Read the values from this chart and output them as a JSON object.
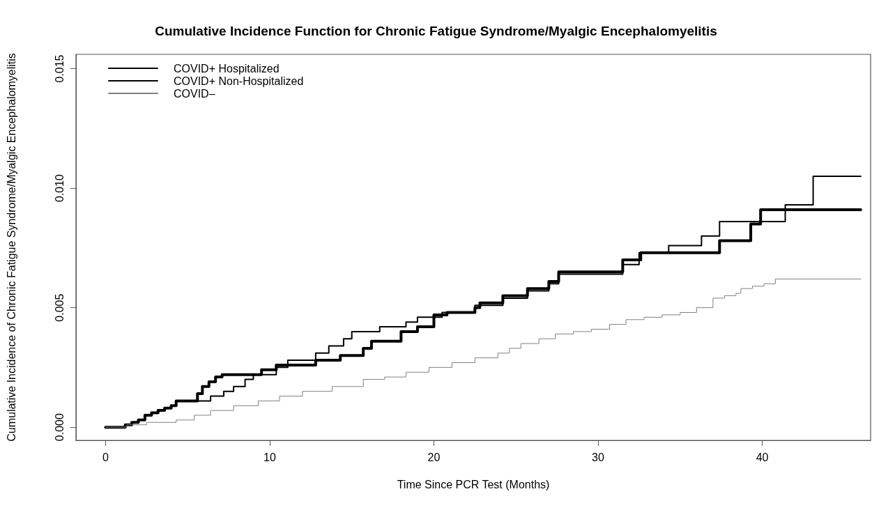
{
  "chart_data": {
    "type": "step",
    "title": "Cumulative Incidence Function for Chronic Fatigue Syndrome/Myalgic Encephalomyelitis",
    "xlabel": "Time Since PCR Test (Months)",
    "ylabel": "Cumulative Incidence of Chronic Fatigue Syndrome/Myalgic Encephalomyelitis",
    "xlim": [
      -1.8,
      46.6
    ],
    "ylim": [
      -0.00055,
      0.0156
    ],
    "xticks": [
      0,
      10,
      20,
      30,
      40
    ],
    "yticks": [
      {
        "value": 0,
        "label": "0.000"
      },
      {
        "value": 0.005,
        "label": "0.005"
      },
      {
        "value": 0.01,
        "label": "0.010"
      },
      {
        "value": 0.015,
        "label": "0.015"
      }
    ],
    "grid": false,
    "legend": "top left",
    "marker": "none",
    "line_style": "solid",
    "series": [
      {
        "name": "COVID+ Hospitalized",
        "color": "#000000",
        "x": [
          0,
          1.2,
          1.6,
          2,
          2.4,
          2.8,
          3.2,
          3.6,
          4,
          4.3,
          5.6,
          5.9,
          6.3,
          6.7,
          7.1,
          9.5,
          10.4,
          12.8,
          14.3,
          15.7,
          16.2,
          18,
          19,
          20,
          20.8,
          22.5,
          22.8,
          24.2,
          25.7,
          27,
          27.6,
          31.5,
          32.6,
          37.4,
          39.3,
          39.9,
          46
        ],
        "values": [
          0,
          0.0001,
          0.0002,
          0.0003,
          0.0005,
          0.0006,
          0.0007,
          0.0008,
          0.0009,
          0.0011,
          0.0014,
          0.0017,
          0.0019,
          0.0021,
          0.0022,
          0.0024,
          0.0026,
          0.0028,
          0.003,
          0.0033,
          0.0036,
          0.004,
          0.0042,
          0.0047,
          0.0048,
          0.005,
          0.0052,
          0.0055,
          0.0058,
          0.0061,
          0.0065,
          0.007,
          0.0073,
          0.0078,
          0.0085,
          0.0091,
          0.0091
        ]
      },
      {
        "name": "COVID+ Non-Hospitalized",
        "color": "#000000",
        "x": [
          0,
          1.2,
          1.6,
          2,
          2.4,
          2.8,
          3.2,
          3.6,
          4,
          4.3,
          6.4,
          7.2,
          7.8,
          8.5,
          9,
          10.4,
          11.1,
          12.8,
          13.6,
          14.5,
          15,
          16.7,
          18.3,
          19,
          20.5,
          22.5,
          24.2,
          25.7,
          27,
          27.6,
          31.5,
          32.5,
          34.3,
          36.3,
          37.4,
          41.4,
          43.1,
          46
        ],
        "values": [
          0,
          0.0001,
          0.0002,
          0.0003,
          0.0005,
          0.0006,
          0.0007,
          0.0008,
          0.0009,
          0.0011,
          0.0013,
          0.0015,
          0.0017,
          0.002,
          0.0022,
          0.0025,
          0.0028,
          0.0031,
          0.0034,
          0.0037,
          0.004,
          0.0042,
          0.0044,
          0.0046,
          0.0048,
          0.0051,
          0.0054,
          0.0057,
          0.006,
          0.0064,
          0.0068,
          0.0073,
          0.0076,
          0.008,
          0.0086,
          0.0093,
          0.0105,
          0.0105
        ]
      },
      {
        "name": "COVID–",
        "color": "#808080",
        "x": [
          0,
          1.3,
          2.5,
          4.3,
          5.4,
          6.4,
          7.8,
          9.3,
          10.6,
          12,
          13.8,
          15.7,
          17,
          18.3,
          19.7,
          21.1,
          22.5,
          23.9,
          24.6,
          25.3,
          26.4,
          27.4,
          28.5,
          29.6,
          30.7,
          31.7,
          32.8,
          33.9,
          35,
          36,
          37,
          37.7,
          38.4,
          38.7,
          39.4,
          40.1,
          40.8,
          46
        ],
        "values": [
          0,
          0.0001,
          0.0002,
          0.0003,
          0.0005,
          0.0007,
          0.0009,
          0.0011,
          0.0013,
          0.0015,
          0.0017,
          0.002,
          0.0021,
          0.0023,
          0.0025,
          0.0027,
          0.0029,
          0.0031,
          0.0033,
          0.0035,
          0.0037,
          0.0039,
          0.004,
          0.0041,
          0.0043,
          0.0045,
          0.0046,
          0.0047,
          0.0048,
          0.005,
          0.0054,
          0.0055,
          0.0056,
          0.0058,
          0.0059,
          0.006,
          0.0062,
          0.0062
        ]
      }
    ]
  }
}
